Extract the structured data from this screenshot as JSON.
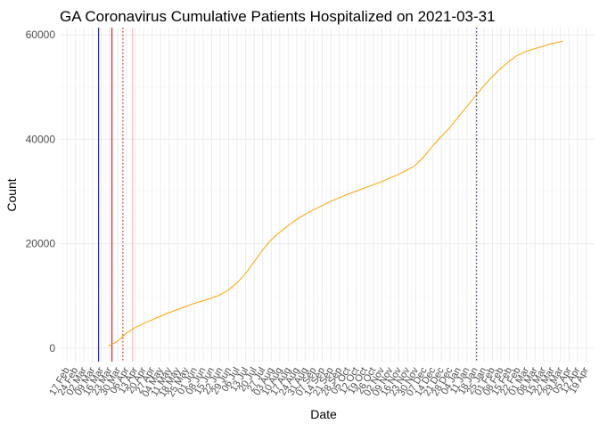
{
  "chart_data": {
    "type": "line",
    "title": "GA Coronavirus Cumulative Patients Hospitalized on 2021-03-31",
    "xlabel": "Date",
    "ylabel": "Count",
    "ylim": [
      -2600,
      61400
    ],
    "xlim": [
      "2020-02-11",
      "2021-04-26"
    ],
    "y_ticks": [
      0,
      20000,
      40000,
      60000
    ],
    "y_tick_labels": [
      "0",
      "20000",
      "40000",
      "60000"
    ],
    "x_tick_labels": [
      {
        "date": "2020-02-17",
        "label": "17 Feb"
      },
      {
        "date": "2020-02-24",
        "label": "24 Feb"
      },
      {
        "date": "2020-03-02",
        "label": "02 Mar"
      },
      {
        "date": "2020-03-09",
        "label": "09 Mar"
      },
      {
        "date": "2020-03-16",
        "label": "16 Mar"
      },
      {
        "date": "2020-03-23",
        "label": "23 Mar"
      },
      {
        "date": "2020-03-30",
        "label": "30 Mar"
      },
      {
        "date": "2020-04-06",
        "label": "06 Apr"
      },
      {
        "date": "2020-04-13",
        "label": "13 Apr"
      },
      {
        "date": "2020-04-20",
        "label": "20 Apr"
      },
      {
        "date": "2020-04-27",
        "label": "27 Apr"
      },
      {
        "date": "2020-05-04",
        "label": "04 May"
      },
      {
        "date": "2020-05-11",
        "label": "11 May"
      },
      {
        "date": "2020-05-18",
        "label": "18 May"
      },
      {
        "date": "2020-05-25",
        "label": "25 May"
      },
      {
        "date": "2020-06-01",
        "label": "01 Jun"
      },
      {
        "date": "2020-06-08",
        "label": "08 Jun"
      },
      {
        "date": "2020-06-15",
        "label": "15 Jun"
      },
      {
        "date": "2020-06-22",
        "label": "22 Jun"
      },
      {
        "date": "2020-06-29",
        "label": "29 Jun"
      },
      {
        "date": "2020-07-06",
        "label": "06 Jul"
      },
      {
        "date": "2020-07-13",
        "label": "13 Jul"
      },
      {
        "date": "2020-07-20",
        "label": "20 Jul"
      },
      {
        "date": "2020-07-27",
        "label": "27 Jul"
      },
      {
        "date": "2020-08-03",
        "label": "03 Aug"
      },
      {
        "date": "2020-08-10",
        "label": "10 Aug"
      },
      {
        "date": "2020-08-17",
        "label": "17 Aug"
      },
      {
        "date": "2020-08-24",
        "label": "24 Aug"
      },
      {
        "date": "2020-08-31",
        "label": "31 Aug"
      },
      {
        "date": "2020-09-07",
        "label": "07 Sep"
      },
      {
        "date": "2020-09-14",
        "label": "14 Sep"
      },
      {
        "date": "2020-09-21",
        "label": "21 Sep"
      },
      {
        "date": "2020-09-28",
        "label": "28 Sep"
      },
      {
        "date": "2020-10-05",
        "label": "05 Oct"
      },
      {
        "date": "2020-10-12",
        "label": "12 Oct"
      },
      {
        "date": "2020-10-19",
        "label": "19 Oct"
      },
      {
        "date": "2020-10-26",
        "label": "26 Oct"
      },
      {
        "date": "2020-11-02",
        "label": "02 Nov"
      },
      {
        "date": "2020-11-09",
        "label": "09 Nov"
      },
      {
        "date": "2020-11-16",
        "label": "16 Nov"
      },
      {
        "date": "2020-11-23",
        "label": "23 Nov"
      },
      {
        "date": "2020-11-30",
        "label": "30 Nov"
      },
      {
        "date": "2020-12-07",
        "label": "07 Dec"
      },
      {
        "date": "2020-12-14",
        "label": "14 Dec"
      },
      {
        "date": "2020-12-21",
        "label": "21 Dec"
      },
      {
        "date": "2020-12-28",
        "label": "28 Dec"
      },
      {
        "date": "2021-01-04",
        "label": "04 Jan"
      },
      {
        "date": "2021-01-11",
        "label": "11 Jan"
      },
      {
        "date": "2021-01-18",
        "label": "18 Jan"
      },
      {
        "date": "2021-01-25",
        "label": "25 Jan"
      },
      {
        "date": "2021-02-01",
        "label": "01 Feb"
      },
      {
        "date": "2021-02-08",
        "label": "08 Feb"
      },
      {
        "date": "2021-02-15",
        "label": "15 Feb"
      },
      {
        "date": "2021-02-22",
        "label": "22 Feb"
      },
      {
        "date": "2021-03-01",
        "label": "01 Mar"
      },
      {
        "date": "2021-03-08",
        "label": "08 Mar"
      },
      {
        "date": "2021-03-15",
        "label": "15 Mar"
      },
      {
        "date": "2021-03-22",
        "label": "22 Mar"
      },
      {
        "date": "2021-03-29",
        "label": "29 Mar"
      },
      {
        "date": "2021-04-05",
        "label": "05 Apr"
      },
      {
        "date": "2021-04-12",
        "label": "12 Apr"
      },
      {
        "date": "2021-04-19",
        "label": "19 Apr"
      }
    ],
    "series": [
      {
        "color": "#FFA500",
        "points": [
          [
            "2020-03-22",
            400
          ],
          [
            "2020-03-29",
            1200
          ],
          [
            "2020-04-05",
            2700
          ],
          [
            "2020-04-12",
            3800
          ],
          [
            "2020-04-19",
            4600
          ],
          [
            "2020-04-26",
            5300
          ],
          [
            "2020-05-03",
            6000
          ],
          [
            "2020-05-10",
            6700
          ],
          [
            "2020-05-17",
            7300
          ],
          [
            "2020-05-24",
            7900
          ],
          [
            "2020-05-31",
            8500
          ],
          [
            "2020-06-07",
            9000
          ],
          [
            "2020-06-14",
            9500
          ],
          [
            "2020-06-21",
            10100
          ],
          [
            "2020-06-28",
            11000
          ],
          [
            "2020-07-05",
            12300
          ],
          [
            "2020-07-12",
            14000
          ],
          [
            "2020-07-19",
            16200
          ],
          [
            "2020-07-26",
            18500
          ],
          [
            "2020-08-02",
            20500
          ],
          [
            "2020-08-09",
            22000
          ],
          [
            "2020-08-16",
            23300
          ],
          [
            "2020-08-23",
            24500
          ],
          [
            "2020-08-30",
            25500
          ],
          [
            "2020-09-06",
            26400
          ],
          [
            "2020-09-13",
            27200
          ],
          [
            "2020-09-20",
            28000
          ],
          [
            "2020-09-27",
            28700
          ],
          [
            "2020-10-04",
            29400
          ],
          [
            "2020-10-11",
            30000
          ],
          [
            "2020-10-18",
            30600
          ],
          [
            "2020-10-25",
            31200
          ],
          [
            "2020-11-01",
            31800
          ],
          [
            "2020-11-08",
            32500
          ],
          [
            "2020-11-15",
            33200
          ],
          [
            "2020-11-22",
            34000
          ],
          [
            "2020-11-29",
            34900
          ],
          [
            "2020-12-06",
            36500
          ],
          [
            "2020-12-13",
            38500
          ],
          [
            "2020-12-20",
            40300
          ],
          [
            "2020-12-27",
            42000
          ],
          [
            "2021-01-03",
            44000
          ],
          [
            "2021-01-10",
            46000
          ],
          [
            "2021-01-17",
            48000
          ],
          [
            "2021-01-24",
            50000
          ],
          [
            "2021-01-31",
            51800
          ],
          [
            "2021-02-07",
            53400
          ],
          [
            "2021-02-14",
            54800
          ],
          [
            "2021-02-21",
            56000
          ],
          [
            "2021-02-28",
            56800
          ],
          [
            "2021-03-07",
            57300
          ],
          [
            "2021-03-14",
            57800
          ],
          [
            "2021-03-21",
            58300
          ],
          [
            "2021-03-31",
            58800
          ]
        ]
      }
    ],
    "vlines": [
      {
        "date": "2020-03-14",
        "color": "#0000FF",
        "style": "solid"
      },
      {
        "date": "2020-03-25",
        "color": "#CC0000",
        "style": "solid"
      },
      {
        "date": "2020-04-03",
        "color": "#CC0000",
        "style": "dotted"
      },
      {
        "date": "2020-04-11",
        "color": "#F4AAAA",
        "style": "solid"
      },
      {
        "date": "2021-01-19",
        "color": "#000080",
        "style": "dotted"
      }
    ],
    "grid": true,
    "legend": "none"
  }
}
